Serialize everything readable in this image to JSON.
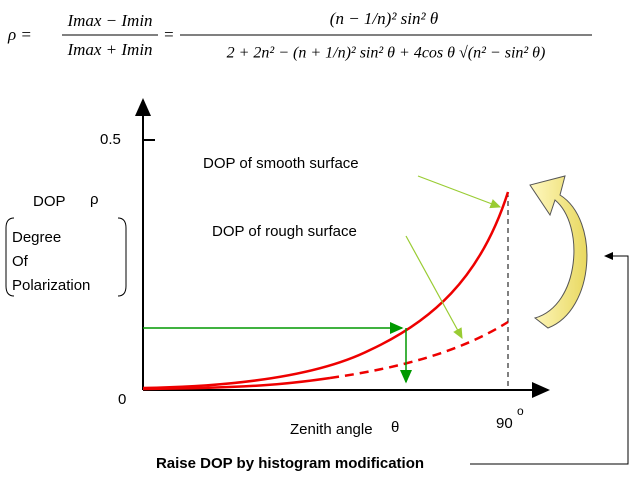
{
  "formula": {
    "lhs": "ρ =",
    "fraction1": {
      "numerator": "Imax − Imin",
      "denominator": "Imax + Imin"
    },
    "equals": "=",
    "fraction2": {
      "numerator": "(n − 1/n)² sin² θ",
      "denominator": "2 + 2n² − (n + 1/n)² sin² θ + 4cos θ √(n² − sin² θ)"
    }
  },
  "axes": {
    "y_tick": "0.5",
    "origin": "0",
    "x_tick": "90",
    "degree": "o",
    "y_label": "DOP",
    "y_symbol": "ρ",
    "y_description": [
      "Degree",
      "Of",
      "Polarization"
    ],
    "x_label": "Zenith angle",
    "x_symbol": "θ"
  },
  "annotations": {
    "smooth": "DOP of smooth surface",
    "rough": "DOP of rough surface"
  },
  "caption": "Raise DOP by histogram modification"
}
